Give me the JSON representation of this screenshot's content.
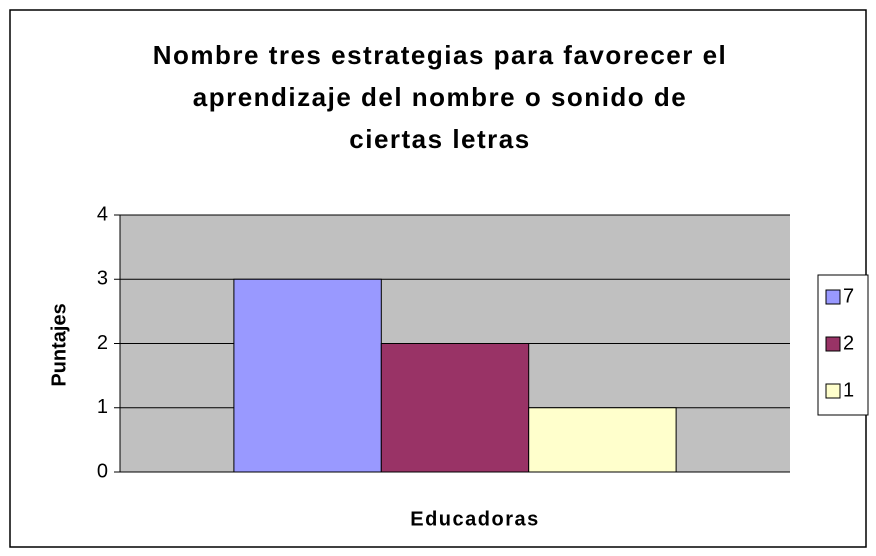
{
  "chart_data": {
    "type": "bar",
    "title": "Nombre tres estrategias para favorecer el aprendizaje del nombre o sonido de ciertas letras",
    "x_label": "Educadoras",
    "y_label": "Puntajes",
    "categories": [
      null
    ],
    "series": [
      {
        "name": "7",
        "color": "#9999ff",
        "values": [
          3
        ]
      },
      {
        "name": "2",
        "color": "#993366",
        "values": [
          2
        ]
      },
      {
        "name": "1",
        "color": "#ffffcc",
        "values": [
          1
        ]
      }
    ],
    "ylim": [
      0,
      4
    ],
    "yticks": [
      0,
      1,
      2,
      3,
      4
    ],
    "grid": true,
    "legend": "right"
  }
}
